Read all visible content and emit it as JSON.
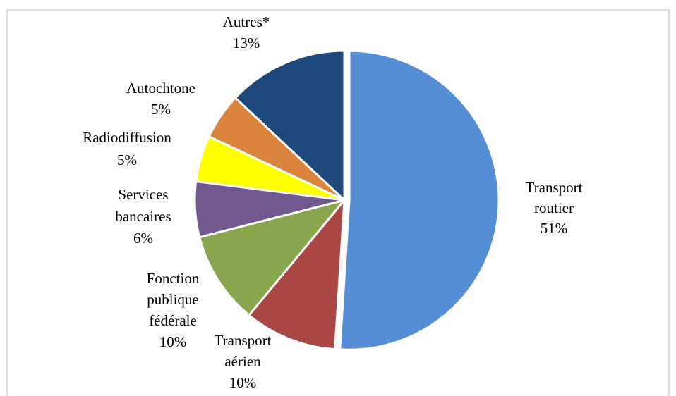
{
  "chart_data": {
    "type": "pie",
    "categories": [
      "Transport routier",
      "Transport aérien",
      "Fonction publique fédérale",
      "Services bancaires",
      "Radiodiffusion",
      "Autochtone",
      "Autres*"
    ],
    "values": [
      51,
      10,
      10,
      6,
      5,
      5,
      13
    ],
    "value_labels": [
      "51%",
      "10%",
      "10%",
      "6%",
      "5%",
      "5%",
      "13%"
    ],
    "colors": [
      "#558ed5",
      "#aa4643",
      "#89a54e",
      "#71588f",
      "#ffff00",
      "#db843d",
      "#1f497d"
    ]
  }
}
